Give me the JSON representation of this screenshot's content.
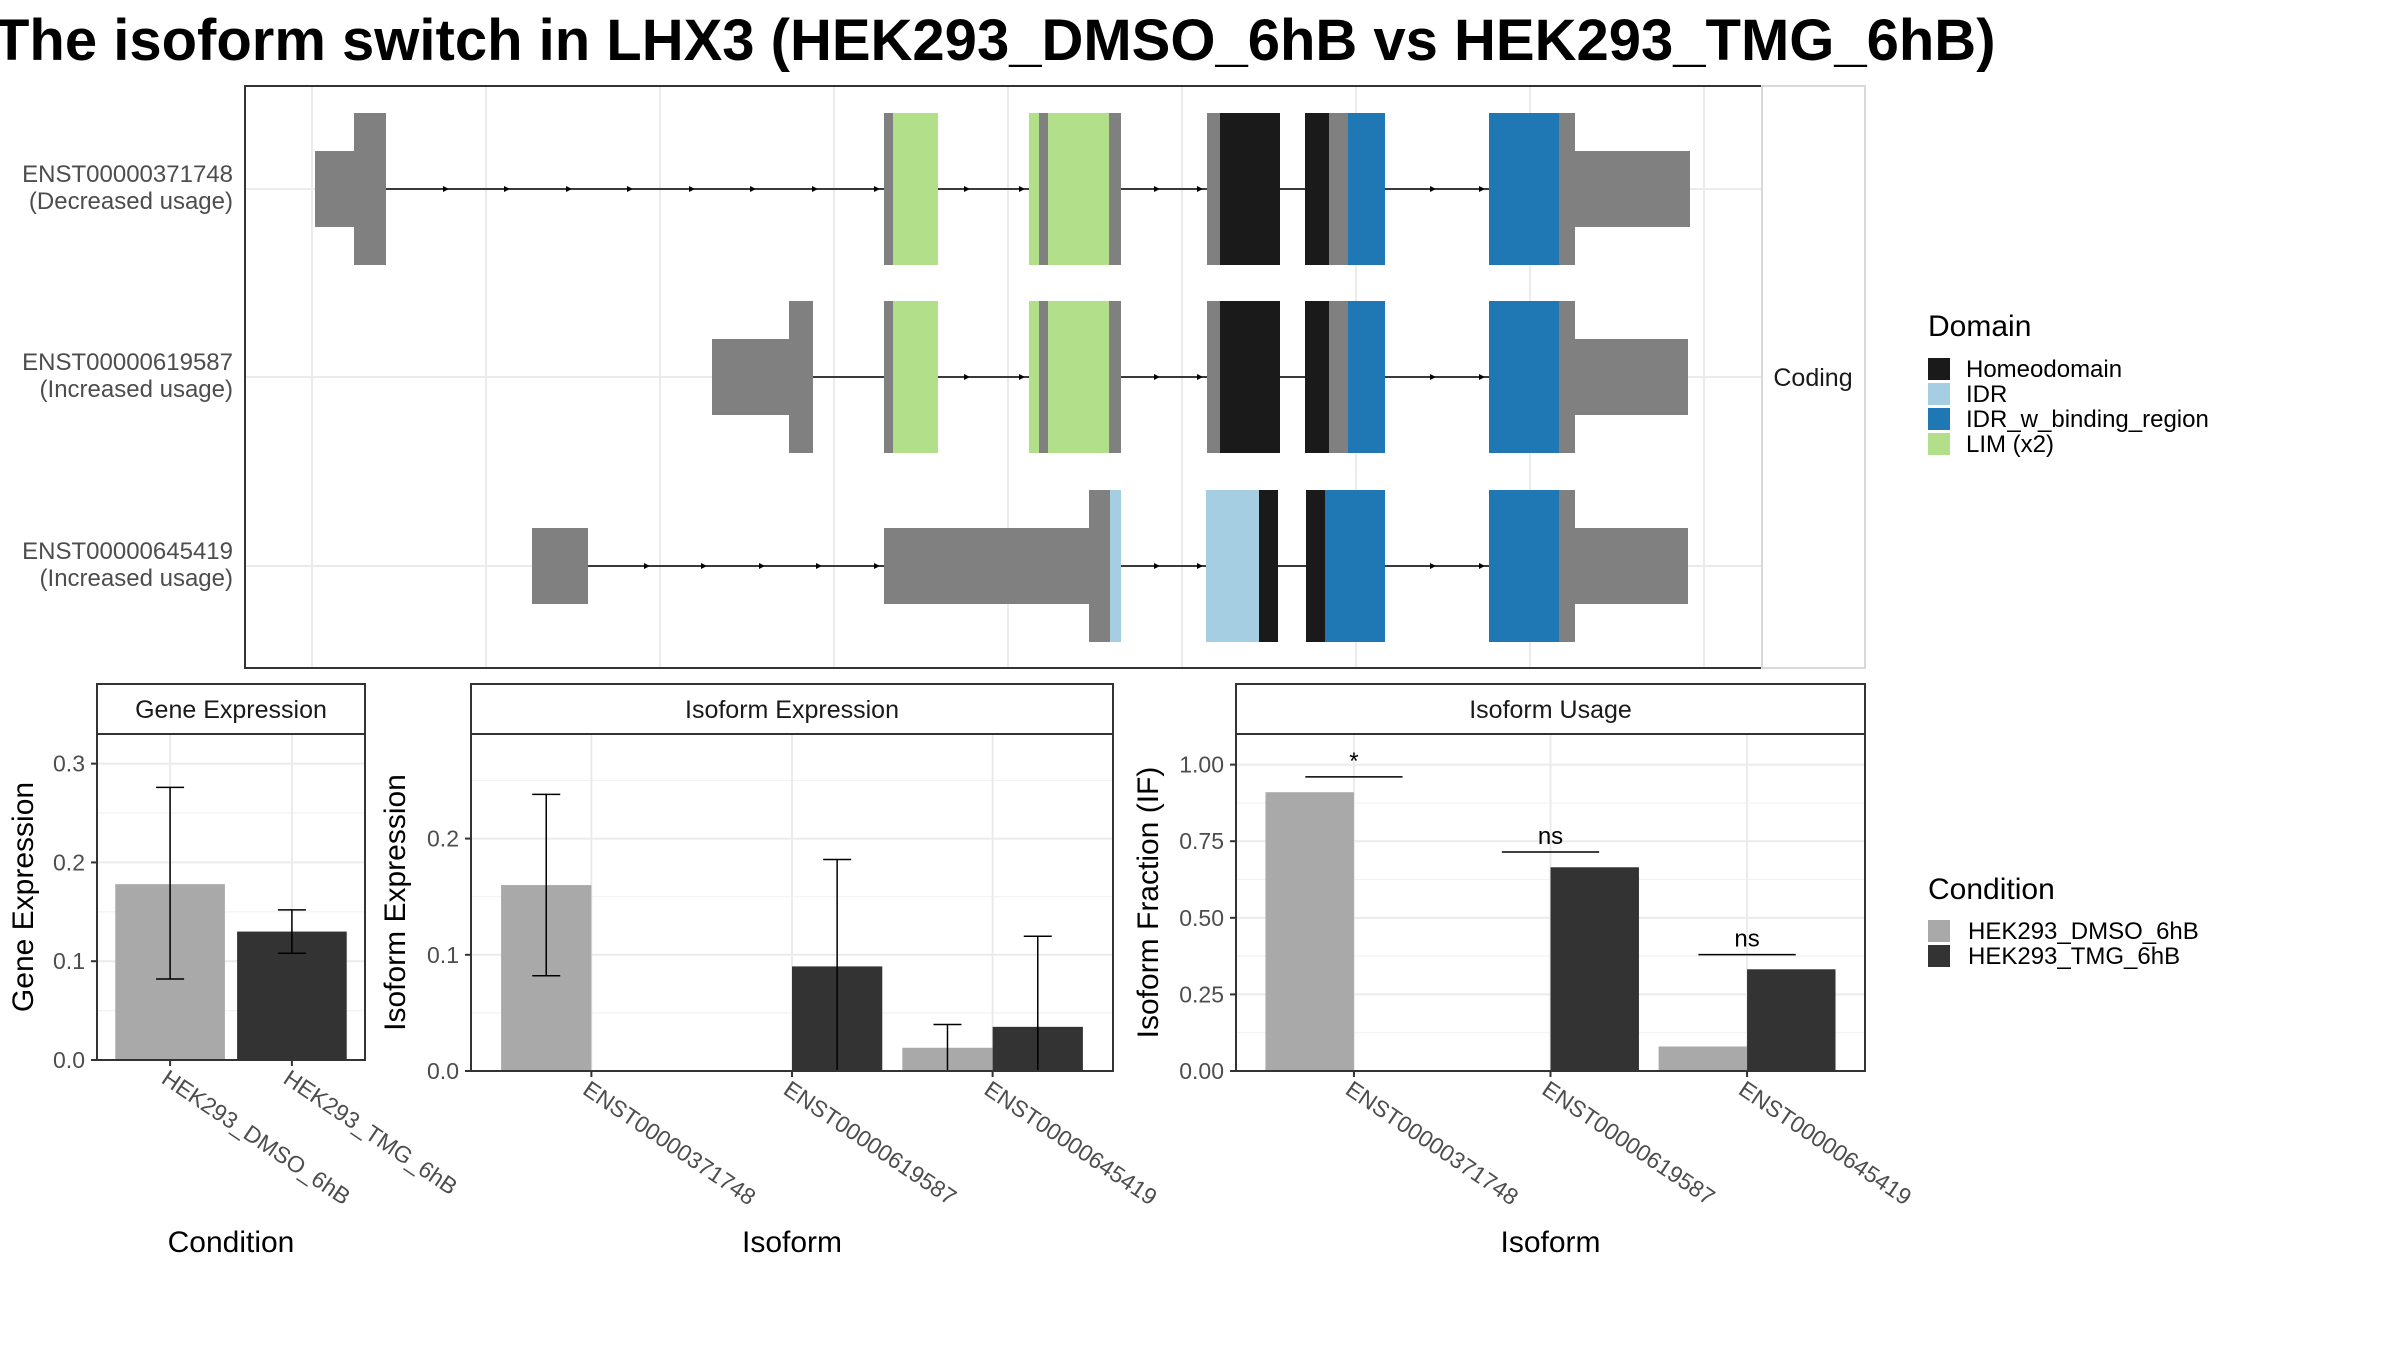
{
  "title": "The isoform switch in LHX3 (HEK293_DMSO_6hB vs HEK293_TMG_6hB)",
  "chart_data": [
    {
      "type": "gene_structure",
      "facet_label": "Coding",
      "rows": [
        {
          "isoform": "ENST00000371748",
          "usage": "(Decreased usage)"
        },
        {
          "isoform": "ENST00000619587",
          "usage": "(Increased usage)"
        },
        {
          "isoform": "ENST00000645419",
          "usage": "(Increased usage)"
        }
      ],
      "legend": {
        "title": "Domain",
        "items": [
          {
            "label": "Homeodomain",
            "color": "#1a1a1a"
          },
          {
            "label": "IDR",
            "color": "#a6cee3"
          },
          {
            "label": "IDR_w_binding_region",
            "color": "#1f78b4"
          },
          {
            "label": "LIM (x2)",
            "color": "#b2df8a"
          }
        ]
      },
      "colors": {
        "utr": "#808080",
        "intron": "#000000"
      }
    },
    {
      "type": "bar",
      "strip": "Gene Expression",
      "xlabel": "Condition",
      "ylabel": "Gene Expression",
      "ylim": [
        0,
        0.33
      ],
      "yticks": [
        0.0,
        0.1,
        0.2,
        0.3
      ],
      "ytick_labels": [
        "0.0",
        "0.1",
        "0.2",
        "0.3"
      ],
      "categories": [
        "HEK293_DMSO_6hB",
        "HEK293_TMG_6hB"
      ],
      "values": [
        0.178,
        0.13
      ],
      "error_low": [
        0.082,
        0.108
      ],
      "error_high": [
        0.276,
        0.152
      ],
      "colors": [
        "#a9a9a9",
        "#333333"
      ]
    },
    {
      "type": "bar",
      "strip": "Isoform Expression",
      "xlabel": "Isoform",
      "ylabel": "Isoform Expression",
      "ylim": [
        0,
        0.29
      ],
      "yticks": [
        0.0,
        0.1,
        0.2
      ],
      "ytick_labels": [
        "0.0",
        "0.1",
        "0.2"
      ],
      "categories": [
        "ENST00000371748",
        "ENST00000619587",
        "ENST00000645419"
      ],
      "series": [
        {
          "name": "HEK293_DMSO_6hB",
          "values": [
            0.16,
            0.0,
            0.02
          ],
          "error_low": [
            0.082,
            0.0,
            0.0
          ],
          "error_high": [
            0.238,
            0.0,
            0.04
          ]
        },
        {
          "name": "HEK293_TMG_6hB",
          "values": [
            0.0,
            0.09,
            0.038
          ],
          "error_low": [
            0.0,
            0.0,
            0.0
          ],
          "error_high": [
            0.0,
            0.182,
            0.116
          ]
        }
      ]
    },
    {
      "type": "bar",
      "strip": "Isoform Usage",
      "xlabel": "Isoform",
      "ylabel": "Isoform Fraction (IF)",
      "ylim": [
        0,
        1.1
      ],
      "yticks": [
        0.0,
        0.25,
        0.5,
        0.75,
        1.0
      ],
      "ytick_labels": [
        "0.00",
        "0.25",
        "0.50",
        "0.75",
        "1.00"
      ],
      "categories": [
        "ENST00000371748",
        "ENST00000619587",
        "ENST00000645419"
      ],
      "series": [
        {
          "name": "HEK293_DMSO_6hB",
          "values": [
            0.91,
            0.0,
            0.08
          ]
        },
        {
          "name": "HEK293_TMG_6hB",
          "values": [
            0.0,
            0.665,
            0.332
          ]
        }
      ],
      "significance": [
        "*",
        "ns",
        "ns"
      ],
      "significance_y": [
        0.96,
        0.715,
        0.38
      ]
    }
  ],
  "condition_legend": {
    "title": "Condition",
    "items": [
      {
        "label": "HEK293_DMSO_6hB",
        "color": "#a9a9a9"
      },
      {
        "label": "HEK293_TMG_6hB",
        "color": "#333333"
      }
    ]
  }
}
